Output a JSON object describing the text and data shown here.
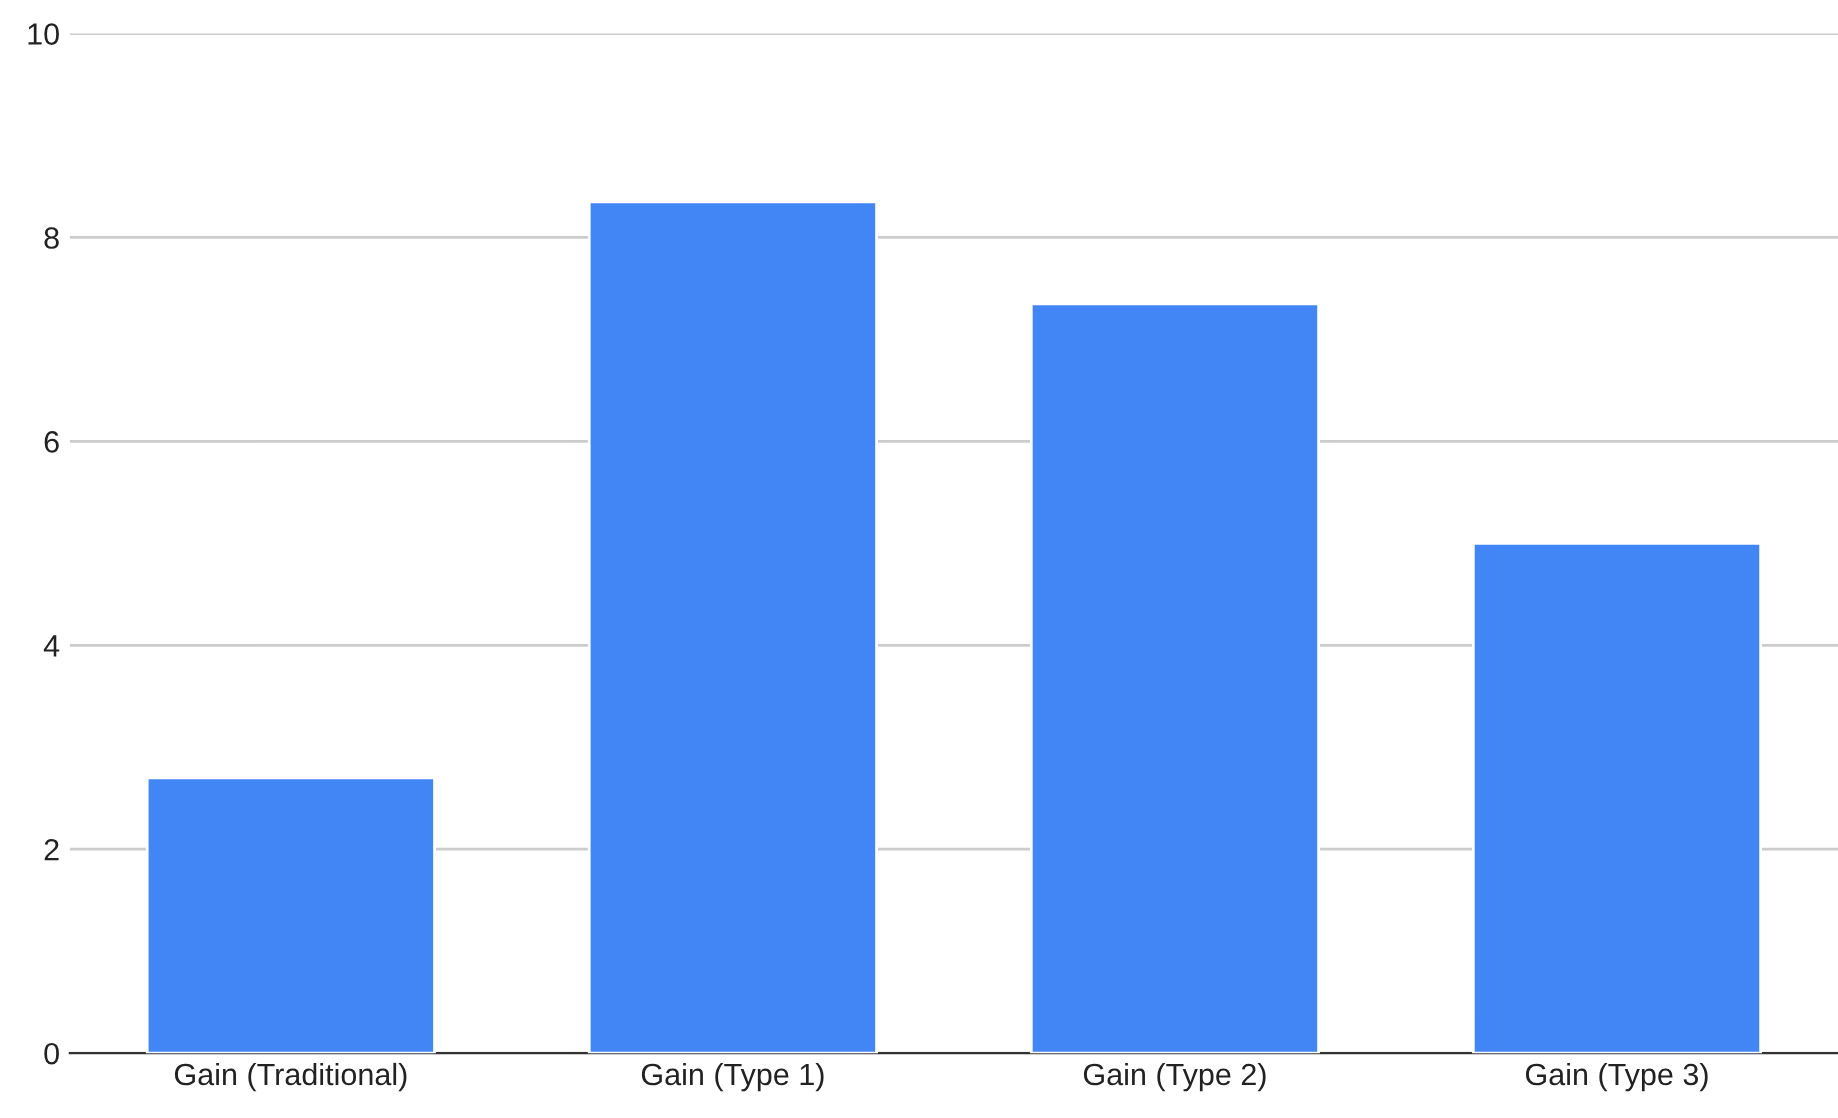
{
  "chart_data": {
    "type": "bar",
    "categories": [
      "Gain (Traditional)",
      "Gain (Type 1)",
      "Gain (Type 2)",
      "Gain (Type 3)"
    ],
    "values": [
      2.7,
      8.35,
      7.35,
      5.0
    ],
    "color": "#4285f4",
    "ylim": [
      0,
      10
    ],
    "yticks": [
      0,
      2,
      4,
      6,
      8,
      10
    ],
    "grid": "y",
    "legend": false
  }
}
